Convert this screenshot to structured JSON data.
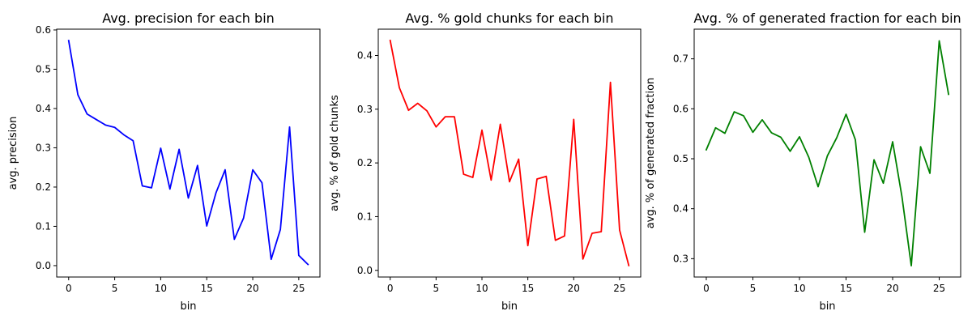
{
  "chart_data": [
    {
      "type": "line",
      "title": "Avg. precision for each bin",
      "xlabel": "bin",
      "ylabel": "avg. precision",
      "color": "#0000ff",
      "xlim": [
        -1.3,
        27.3
      ],
      "ylim": [
        -0.029,
        0.602
      ],
      "xticks": [
        0,
        5,
        10,
        15,
        20,
        25
      ],
      "xtick_labels": [
        "0",
        "5",
        "10",
        "15",
        "20",
        "25"
      ],
      "yticks": [
        0.0,
        0.1,
        0.2,
        0.3,
        0.4,
        0.5,
        0.6
      ],
      "ytick_labels": [
        "0.0",
        "0.1",
        "0.2",
        "0.3",
        "0.4",
        "0.5",
        "0.6"
      ],
      "grid": false,
      "x": [
        0,
        1,
        2,
        3,
        4,
        5,
        6,
        7,
        8,
        9,
        10,
        11,
        12,
        13,
        14,
        15,
        16,
        17,
        18,
        19,
        20,
        21,
        22,
        23,
        24,
        25,
        26
      ],
      "values": [
        0.573,
        0.435,
        0.386,
        0.372,
        0.358,
        0.352,
        0.333,
        0.318,
        0.203,
        0.198,
        0.299,
        0.195,
        0.296,
        0.172,
        0.255,
        0.101,
        0.185,
        0.244,
        0.067,
        0.121,
        0.244,
        0.211,
        0.016,
        0.092,
        0.353,
        0.026,
        0.003
      ]
    },
    {
      "type": "line",
      "title": "Avg. % gold chunks for each bin",
      "xlabel": "bin",
      "ylabel": "avg. % of gold chunks",
      "color": "#ff0000",
      "xlim": [
        -1.3,
        27.3
      ],
      "ylim": [
        -0.0124,
        0.449
      ],
      "xticks": [
        0,
        5,
        10,
        15,
        20,
        25
      ],
      "xtick_labels": [
        "0",
        "5",
        "10",
        "15",
        "20",
        "25"
      ],
      "yticks": [
        0.0,
        0.1,
        0.2,
        0.3,
        0.4
      ],
      "ytick_labels": [
        "0.0",
        "0.1",
        "0.2",
        "0.3",
        "0.4"
      ],
      "grid": false,
      "x": [
        0,
        1,
        2,
        3,
        4,
        5,
        6,
        7,
        8,
        9,
        10,
        11,
        12,
        13,
        14,
        15,
        16,
        17,
        18,
        19,
        20,
        21,
        22,
        23,
        24,
        25,
        26
      ],
      "values": [
        0.428,
        0.34,
        0.298,
        0.311,
        0.297,
        0.267,
        0.286,
        0.286,
        0.179,
        0.173,
        0.261,
        0.168,
        0.272,
        0.165,
        0.207,
        0.046,
        0.17,
        0.175,
        0.056,
        0.064,
        0.281,
        0.021,
        0.069,
        0.072,
        0.35,
        0.075,
        0.009
      ]
    },
    {
      "type": "line",
      "title": "Avg. % of generated fraction for each bin",
      "xlabel": "bin",
      "ylabel": "avg. % of generated fraction",
      "color": "#008000",
      "xlim": [
        -1.3,
        27.3
      ],
      "ylim": [
        0.2633,
        0.7594
      ],
      "xticks": [
        0,
        5,
        10,
        15,
        20,
        25
      ],
      "xtick_labels": [
        "0",
        "5",
        "10",
        "15",
        "20",
        "25"
      ],
      "yticks": [
        0.3,
        0.4,
        0.5,
        0.6,
        0.7
      ],
      "ytick_labels": [
        "0.3",
        "0.4",
        "0.5",
        "0.6",
        "0.7"
      ],
      "grid": false,
      "x": [
        0,
        1,
        2,
        3,
        4,
        5,
        6,
        7,
        8,
        9,
        10,
        11,
        12,
        13,
        14,
        15,
        16,
        17,
        18,
        19,
        20,
        21,
        22,
        23,
        24,
        25,
        26
      ],
      "values": [
        0.518,
        0.562,
        0.551,
        0.594,
        0.586,
        0.553,
        0.578,
        0.552,
        0.543,
        0.515,
        0.544,
        0.503,
        0.444,
        0.506,
        0.542,
        0.589,
        0.538,
        0.353,
        0.498,
        0.451,
        0.534,
        0.424,
        0.286,
        0.524,
        0.471,
        0.736,
        0.629
      ]
    }
  ]
}
